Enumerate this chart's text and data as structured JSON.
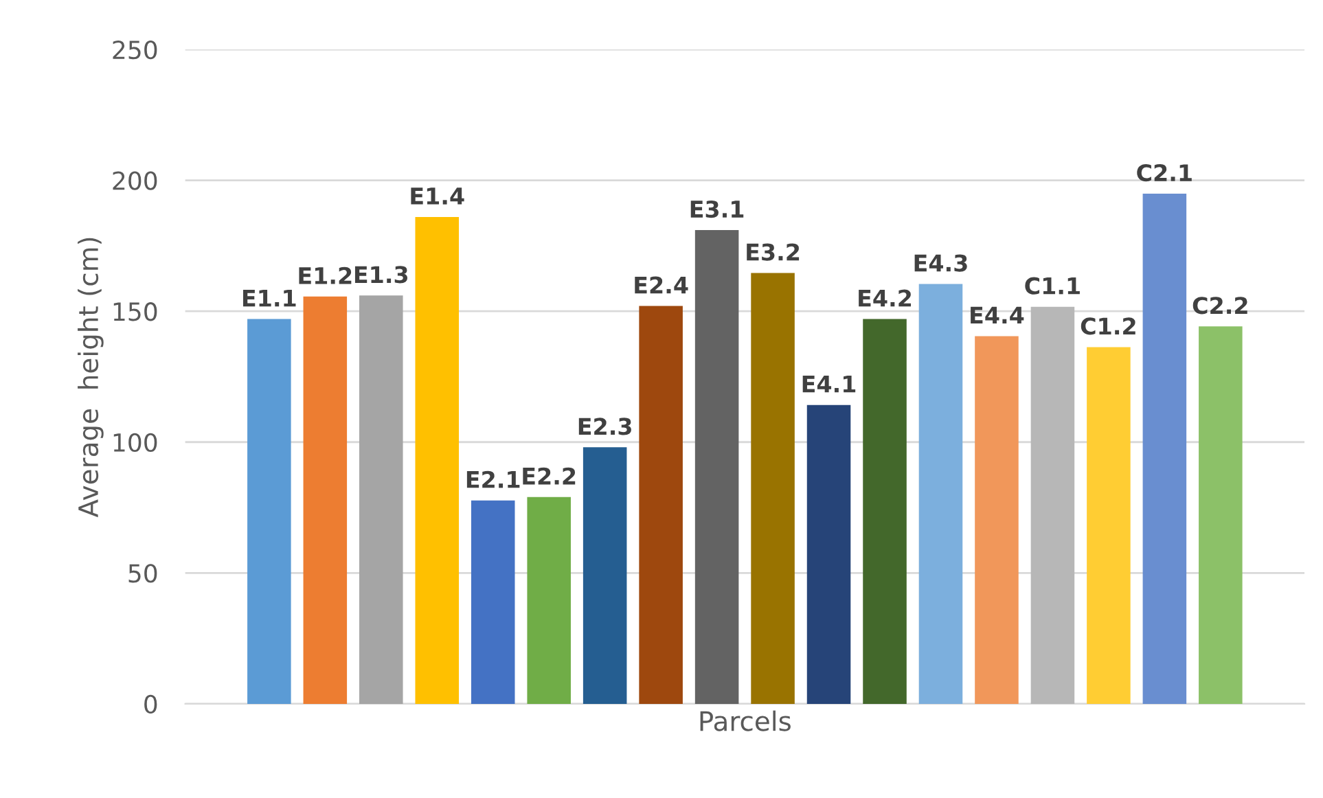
{
  "chart_data": {
    "type": "bar",
    "xlabel": "Parcels",
    "ylabel": "Average  height (cm)",
    "categories": [
      null
    ],
    "ylim": [
      0,
      250
    ],
    "yticks": [
      0,
      50,
      100,
      150,
      200,
      250
    ],
    "grid": "y",
    "legend": false,
    "series": [
      {
        "name": "E1.1",
        "color": "#5b9bd5",
        "values": [
          147
        ]
      },
      {
        "name": "E1.2",
        "color": "#ed7d31",
        "values": [
          155.6
        ]
      },
      {
        "name": "E1.3",
        "color": "#a5a5a5",
        "values": [
          156
        ]
      },
      {
        "name": "E1.4",
        "color": "#ffc000",
        "values": [
          186
        ]
      },
      {
        "name": "E2.1",
        "color": "#4472c4",
        "values": [
          77.7
        ]
      },
      {
        "name": "E2.2",
        "color": "#70ad47",
        "values": [
          79
        ]
      },
      {
        "name": "E2.3",
        "color": "#255e91",
        "values": [
          98
        ]
      },
      {
        "name": "E2.4",
        "color": "#9e480e",
        "values": [
          152
        ]
      },
      {
        "name": "E3.1",
        "color": "#636363",
        "values": [
          181
        ]
      },
      {
        "name": "E3.2",
        "color": "#997300",
        "values": [
          164.6
        ]
      },
      {
        "name": "E4.1",
        "color": "#264478",
        "values": [
          114.2
        ]
      },
      {
        "name": "E4.2",
        "color": "#43682b",
        "values": [
          147
        ]
      },
      {
        "name": "E4.3",
        "color": "#7cafdd",
        "values": [
          160.4
        ]
      },
      {
        "name": "E4.4",
        "color": "#f1975a",
        "values": [
          140.5
        ]
      },
      {
        "name": "C1.1",
        "color": "#b7b7b7",
        "values": [
          151.7
        ]
      },
      {
        "name": "C1.2",
        "color": "#ffcd33",
        "values": [
          136.3
        ]
      },
      {
        "name": "C2.1",
        "color": "#698ed0",
        "values": [
          194.9
        ]
      },
      {
        "name": "C2.2",
        "color": "#8cc168",
        "values": [
          144.2
        ]
      }
    ]
  }
}
